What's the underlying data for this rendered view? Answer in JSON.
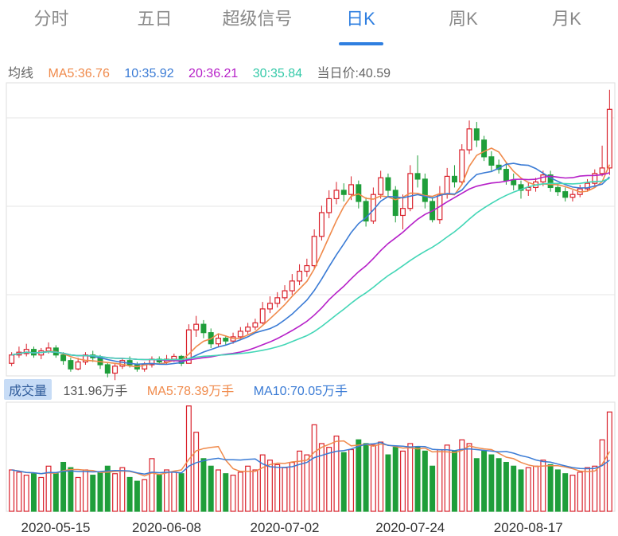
{
  "tabs": [
    {
      "label": "分时"
    },
    {
      "label": "五日"
    },
    {
      "label": "超级信号"
    },
    {
      "label": "日K"
    },
    {
      "label": "周K"
    },
    {
      "label": "月K"
    }
  ],
  "active_tab": 3,
  "legend": {
    "prefix": "均线",
    "ma5": "MA5:36.76",
    "ma10": "10:35.92",
    "ma20": "20:36.21",
    "ma30": "30:35.84",
    "close": "当日价:40.59"
  },
  "volume_header": {
    "badge": "成交量",
    "current": "131.96万手",
    "ma5": "MA5:78.39万手",
    "ma10": "MA10:70.05万手"
  },
  "colors": {
    "up": "#d9202a",
    "down": "#1f9e3a",
    "ma5": "#f08a4b",
    "ma10": "#3a7bd5",
    "ma20": "#b620c8",
    "ma30": "#42d6b6",
    "accent": "#2f7fe0"
  },
  "chart_data": {
    "type": "candlestick",
    "date_labels": [
      "2020-05-15",
      "2020-06-08",
      "2020-07-02",
      "2020-07-24",
      "2020-08-17"
    ],
    "date_label_index": [
      8,
      38,
      68,
      98,
      128
    ],
    "price_range": [
      21.5,
      42.5
    ],
    "volume_range": [
      0,
      145
    ],
    "candles": [
      [
        22.4,
        23.0,
        23.2,
        22.2,
        55
      ],
      [
        23.0,
        23.2,
        23.6,
        22.8,
        52
      ],
      [
        23.1,
        23.4,
        23.8,
        22.9,
        48
      ],
      [
        23.4,
        23.0,
        23.6,
        22.8,
        50
      ],
      [
        23.0,
        23.3,
        23.5,
        22.7,
        45
      ],
      [
        23.3,
        23.5,
        23.9,
        23.1,
        60
      ],
      [
        23.5,
        23.0,
        23.7,
        22.8,
        50
      ],
      [
        23.0,
        22.6,
        23.2,
        22.3,
        65
      ],
      [
        22.6,
        22.0,
        22.8,
        21.8,
        58
      ],
      [
        22.0,
        22.5,
        22.8,
        21.9,
        45
      ],
      [
        22.5,
        23.0,
        23.2,
        22.3,
        55
      ],
      [
        23.0,
        22.8,
        23.3,
        22.5,
        48
      ],
      [
        22.8,
        22.3,
        23.0,
        22.0,
        52
      ],
      [
        22.3,
        21.7,
        22.5,
        21.4,
        60
      ],
      [
        21.7,
        22.2,
        22.4,
        21.2,
        50
      ],
      [
        22.2,
        22.6,
        22.8,
        22.0,
        58
      ],
      [
        22.6,
        22.3,
        22.9,
        22.1,
        45
      ],
      [
        22.3,
        22.0,
        22.5,
        21.8,
        40
      ],
      [
        22.0,
        22.3,
        22.5,
        21.8,
        42
      ],
      [
        22.3,
        22.7,
        22.9,
        22.1,
        70
      ],
      [
        22.7,
        22.5,
        22.9,
        22.3,
        48
      ],
      [
        22.5,
        22.7,
        23.0,
        22.3,
        55
      ],
      [
        22.7,
        22.9,
        23.1,
        22.5,
        52
      ],
      [
        22.9,
        22.4,
        23.0,
        22.2,
        50
      ],
      [
        22.4,
        24.8,
        25.2,
        22.4,
        140
      ],
      [
        24.8,
        25.2,
        25.8,
        24.3,
        105
      ],
      [
        25.2,
        24.6,
        25.5,
        24.2,
        70
      ],
      [
        24.6,
        23.8,
        24.9,
        23.5,
        60
      ],
      [
        23.8,
        24.2,
        24.5,
        23.6,
        55
      ],
      [
        24.2,
        24.0,
        24.4,
        23.7,
        50
      ],
      [
        24.0,
        24.3,
        24.6,
        23.8,
        48
      ],
      [
        24.3,
        24.7,
        25.0,
        24.1,
        52
      ],
      [
        24.7,
        25.0,
        25.3,
        24.5,
        60
      ],
      [
        25.0,
        25.3,
        25.6,
        24.8,
        55
      ],
      [
        25.3,
        26.3,
        26.8,
        25.2,
        75
      ],
      [
        26.3,
        26.7,
        27.2,
        26.0,
        68
      ],
      [
        26.7,
        27.1,
        27.5,
        26.4,
        62
      ],
      [
        27.1,
        27.6,
        28.0,
        26.9,
        58
      ],
      [
        27.6,
        28.3,
        28.8,
        27.3,
        65
      ],
      [
        28.3,
        29.0,
        29.5,
        28.0,
        80
      ],
      [
        29.0,
        29.4,
        29.9,
        28.6,
        75
      ],
      [
        29.4,
        31.5,
        32.0,
        29.2,
        115
      ],
      [
        31.5,
        33.2,
        33.7,
        31.2,
        90
      ],
      [
        33.2,
        34.2,
        34.8,
        32.8,
        85
      ],
      [
        34.2,
        34.8,
        35.4,
        33.8,
        100
      ],
      [
        34.8,
        34.5,
        35.3,
        34.0,
        78
      ],
      [
        34.5,
        35.2,
        35.8,
        34.1,
        82
      ],
      [
        35.2,
        34.0,
        35.5,
        33.5,
        95
      ],
      [
        34.0,
        32.6,
        34.3,
        32.2,
        90
      ],
      [
        32.6,
        34.5,
        35.0,
        32.4,
        88
      ],
      [
        34.5,
        35.7,
        36.2,
        34.2,
        92
      ],
      [
        35.7,
        34.8,
        36.0,
        34.3,
        75
      ],
      [
        34.8,
        33.0,
        35.1,
        32.5,
        85
      ],
      [
        33.0,
        33.5,
        34.5,
        32.0,
        80
      ],
      [
        33.5,
        36.0,
        36.6,
        33.3,
        90
      ],
      [
        36.0,
        35.6,
        37.3,
        35.0,
        85
      ],
      [
        35.6,
        34.0,
        36.0,
        33.5,
        80
      ],
      [
        34.0,
        32.7,
        34.3,
        32.5,
        60
      ],
      [
        32.7,
        34.5,
        35.1,
        32.4,
        82
      ],
      [
        34.5,
        35.8,
        36.4,
        34.2,
        88
      ],
      [
        35.8,
        35.4,
        36.6,
        35.0,
        80
      ],
      [
        35.4,
        37.7,
        38.1,
        35.2,
        95
      ],
      [
        37.7,
        39.2,
        39.8,
        37.4,
        90
      ],
      [
        39.2,
        38.4,
        39.7,
        37.9,
        70
      ],
      [
        38.4,
        37.2,
        38.7,
        36.9,
        80
      ],
      [
        37.2,
        36.6,
        37.6,
        36.2,
        75
      ],
      [
        36.6,
        36.3,
        37.0,
        36.0,
        70
      ],
      [
        36.3,
        35.5,
        36.8,
        35.2,
        65
      ],
      [
        35.5,
        35.2,
        36.0,
        34.8,
        60
      ],
      [
        35.2,
        34.8,
        35.5,
        34.2,
        55
      ],
      [
        34.8,
        35.0,
        35.4,
        34.4,
        58
      ],
      [
        35.0,
        35.4,
        35.7,
        34.7,
        60
      ],
      [
        35.4,
        35.9,
        36.2,
        35.1,
        68
      ],
      [
        35.9,
        35.0,
        36.2,
        34.7,
        62
      ],
      [
        35.0,
        34.7,
        35.3,
        34.4,
        55
      ],
      [
        34.7,
        34.3,
        35.0,
        34.0,
        50
      ],
      [
        34.3,
        34.5,
        34.8,
        34.0,
        48
      ],
      [
        34.5,
        34.9,
        35.2,
        34.3,
        52
      ],
      [
        34.9,
        35.3,
        35.6,
        34.7,
        58
      ],
      [
        35.3,
        36.0,
        36.3,
        35.1,
        60
      ],
      [
        36.0,
        36.4,
        38.0,
        35.8,
        95
      ],
      [
        36.4,
        40.6,
        42.0,
        35.9,
        132
      ]
    ],
    "ma_tail": {
      "ma5": 36.76,
      "ma10": 35.92,
      "ma20": 36.21,
      "ma30": 35.84
    },
    "volume_ma": {
      "ma5": 78.39,
      "ma10": 70.05
    }
  }
}
